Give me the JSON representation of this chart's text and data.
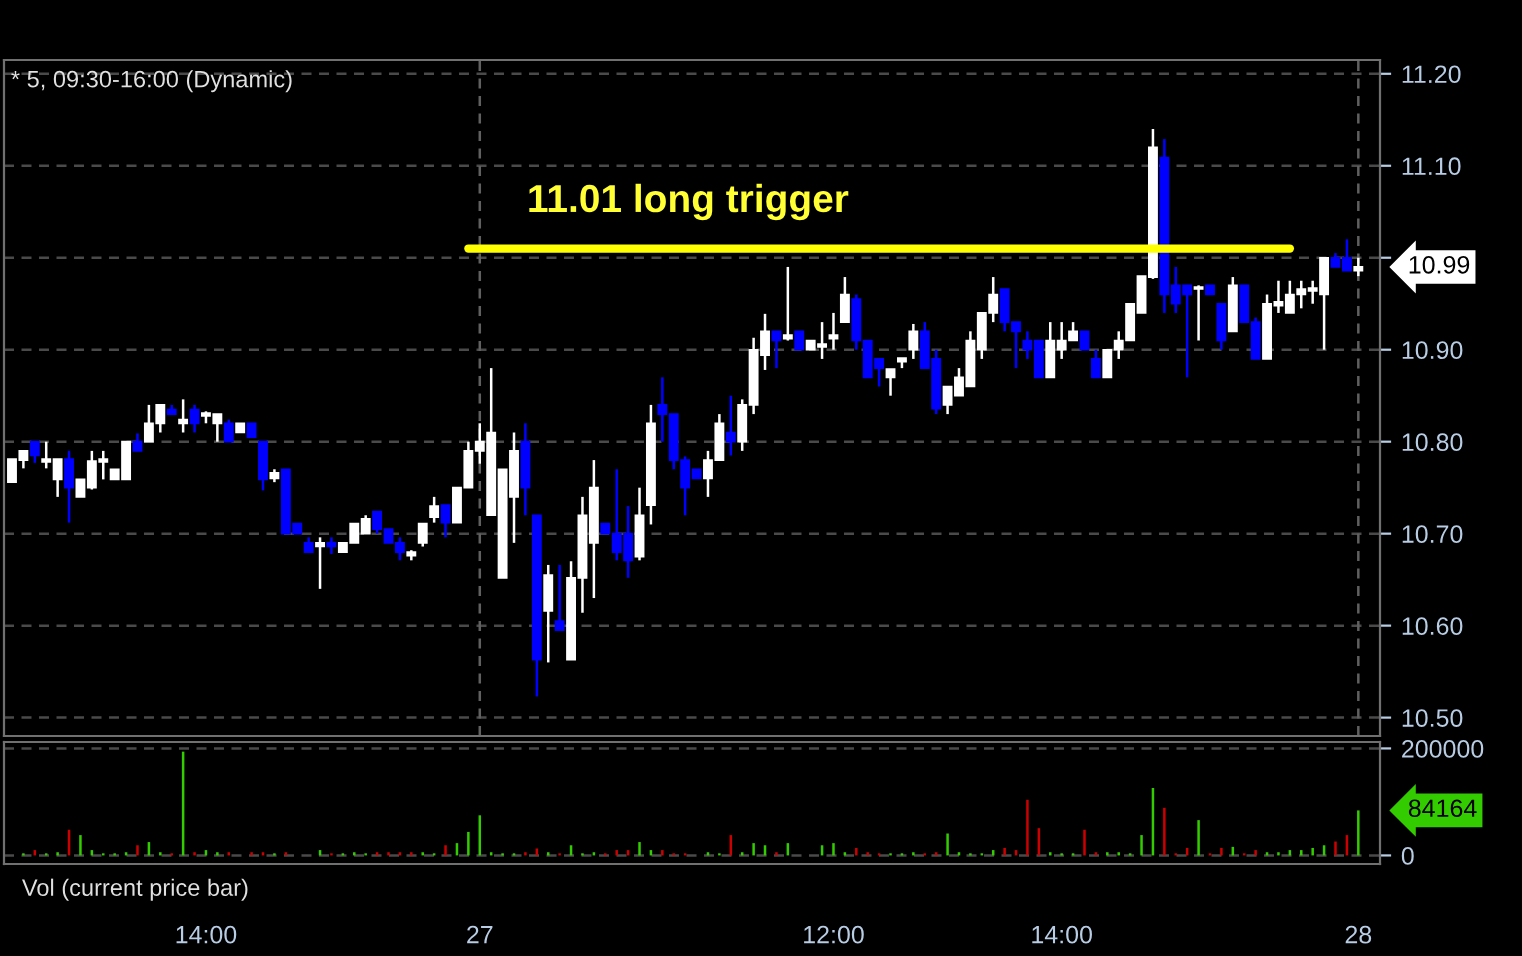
{
  "chart_data": [
    {
      "type": "candlestick",
      "title": "* 5, 09:30-16:00 (Dynamic)",
      "categories": [
        null,
        null,
        null,
        null,
        null,
        null,
        null,
        null,
        null,
        null,
        null,
        null,
        null,
        null,
        null,
        null,
        null,
        null,
        null,
        null,
        null,
        null,
        null,
        null,
        null,
        null,
        null,
        null,
        null,
        null,
        null,
        null,
        null,
        null,
        null,
        null,
        null,
        null,
        null,
        null,
        null,
        null,
        null,
        null,
        null,
        null,
        null,
        null,
        null,
        null,
        null,
        null,
        null,
        null,
        null,
        null,
        null,
        null,
        null,
        null,
        null,
        null,
        null,
        null,
        null,
        null,
        null,
        null,
        null,
        null,
        null,
        null,
        null,
        null,
        null,
        null,
        null,
        null,
        null,
        null,
        null,
        null,
        null,
        null,
        null,
        null,
        null,
        null,
        null,
        null,
        null,
        null,
        null,
        null,
        null,
        null,
        null,
        null,
        null,
        null,
        null,
        null,
        null,
        null,
        null,
        null,
        null,
        null,
        null,
        null,
        null,
        null,
        null,
        null,
        null,
        null,
        null,
        null,
        null
      ],
      "ohlc": [
        [
          10.756,
          10.781,
          10.756,
          10.781
        ],
        [
          10.78,
          10.79,
          10.771,
          10.79
        ],
        [
          10.8,
          10.8,
          10.777,
          10.785
        ],
        [
          10.778,
          10.8,
          10.771,
          10.781
        ],
        [
          10.759,
          10.781,
          10.74,
          10.781
        ],
        [
          10.781,
          10.79,
          10.712,
          10.75
        ],
        [
          10.74,
          10.759,
          10.74,
          10.759
        ],
        [
          10.75,
          10.79,
          10.748,
          10.779
        ],
        [
          10.778,
          10.79,
          10.759,
          10.781
        ],
        [
          10.759,
          10.77,
          10.759,
          10.77
        ],
        [
          10.759,
          10.8,
          10.759,
          10.8
        ],
        [
          10.8,
          10.809,
          10.79,
          10.79
        ],
        [
          10.8,
          10.84,
          10.8,
          10.82
        ],
        [
          10.82,
          10.84,
          10.81,
          10.84
        ],
        [
          10.835,
          10.84,
          10.83,
          10.83
        ],
        [
          10.82,
          10.846,
          10.81,
          10.824
        ],
        [
          10.835,
          10.84,
          10.81,
          10.82
        ],
        [
          10.828,
          10.833,
          10.82,
          10.831
        ],
        [
          10.82,
          10.83,
          10.8,
          10.83
        ],
        [
          10.82,
          10.824,
          10.8,
          10.8
        ],
        [
          10.81,
          10.82,
          10.81,
          10.82
        ],
        [
          10.82,
          10.82,
          10.805,
          10.805
        ],
        [
          10.8,
          10.8,
          10.747,
          10.759
        ],
        [
          10.76,
          10.77,
          10.756,
          10.766
        ],
        [
          10.77,
          10.77,
          10.7,
          10.7
        ],
        [
          10.711,
          10.711,
          10.7,
          10.7
        ],
        [
          10.69,
          10.696,
          10.68,
          10.68
        ],
        [
          10.686,
          10.696,
          10.64,
          10.69
        ],
        [
          10.69,
          10.696,
          10.678,
          10.686
        ],
        [
          10.68,
          10.69,
          10.68,
          10.69
        ],
        [
          10.69,
          10.711,
          10.69,
          10.711
        ],
        [
          10.7,
          10.72,
          10.7,
          10.716
        ],
        [
          10.724,
          10.724,
          10.7,
          10.705
        ],
        [
          10.705,
          10.705,
          10.69,
          10.69
        ],
        [
          10.69,
          10.696,
          10.671,
          10.68
        ],
        [
          10.676,
          10.682,
          10.671,
          10.68
        ],
        [
          10.69,
          10.711,
          10.686,
          10.711
        ],
        [
          10.718,
          10.74,
          10.712,
          10.73
        ],
        [
          10.731,
          10.731,
          10.696,
          10.712
        ],
        [
          10.712,
          10.75,
          10.712,
          10.75
        ],
        [
          10.75,
          10.8,
          10.75,
          10.79
        ],
        [
          10.79,
          10.82,
          10.776,
          10.8
        ],
        [
          10.72,
          10.88,
          10.72,
          10.81
        ],
        [
          10.652,
          10.77,
          10.652,
          10.77
        ],
        [
          10.74,
          10.81,
          10.69,
          10.79
        ],
        [
          10.8,
          10.82,
          10.72,
          10.75
        ],
        [
          10.72,
          10.72,
          10.523,
          10.563
        ],
        [
          10.616,
          10.666,
          10.56,
          10.655
        ],
        [
          10.605,
          10.666,
          10.595,
          10.595
        ],
        [
          10.563,
          10.67,
          10.563,
          10.652
        ],
        [
          10.652,
          10.74,
          10.614,
          10.72
        ],
        [
          10.69,
          10.78,
          10.63,
          10.75
        ],
        [
          10.711,
          10.711,
          10.7,
          10.7
        ],
        [
          10.7,
          10.77,
          10.671,
          10.68
        ],
        [
          10.7,
          10.73,
          10.652,
          10.671
        ],
        [
          10.675,
          10.75,
          10.671,
          10.72
        ],
        [
          10.731,
          10.84,
          10.71,
          10.82
        ],
        [
          10.84,
          10.87,
          10.8,
          10.83
        ],
        [
          10.83,
          10.83,
          10.77,
          10.78
        ],
        [
          10.78,
          10.784,
          10.72,
          10.75
        ],
        [
          10.77,
          10.77,
          10.76,
          10.76
        ],
        [
          10.76,
          10.79,
          10.74,
          10.78
        ],
        [
          10.78,
          10.83,
          10.78,
          10.82
        ],
        [
          10.81,
          10.85,
          10.785,
          10.8
        ],
        [
          10.8,
          10.846,
          10.79,
          10.84
        ],
        [
          10.84,
          10.913,
          10.83,
          10.9
        ],
        [
          10.894,
          10.939,
          10.878,
          10.92
        ],
        [
          10.92,
          10.92,
          10.88,
          10.91
        ],
        [
          10.912,
          10.99,
          10.91,
          10.916
        ],
        [
          10.92,
          10.92,
          10.9,
          10.9
        ],
        [
          10.9,
          10.91,
          10.9,
          10.91
        ],
        [
          10.903,
          10.93,
          10.89,
          10.906
        ],
        [
          10.912,
          10.94,
          10.9,
          10.916
        ],
        [
          10.93,
          10.979,
          10.93,
          10.96
        ],
        [
          10.955,
          10.96,
          10.9,
          10.91
        ],
        [
          10.91,
          10.91,
          10.87,
          10.87
        ],
        [
          10.89,
          10.89,
          10.86,
          10.88
        ],
        [
          10.87,
          10.879,
          10.85,
          10.879
        ],
        [
          10.887,
          10.891,
          10.88,
          10.891
        ],
        [
          10.9,
          10.928,
          10.89,
          10.92
        ],
        [
          10.92,
          10.93,
          10.88,
          10.88
        ],
        [
          10.89,
          10.9,
          10.83,
          10.836
        ],
        [
          10.84,
          10.86,
          10.83,
          10.86
        ],
        [
          10.85,
          10.88,
          10.85,
          10.87
        ],
        [
          10.86,
          10.92,
          10.86,
          10.91
        ],
        [
          10.9,
          10.94,
          10.89,
          10.94
        ],
        [
          10.94,
          10.979,
          10.93,
          10.96
        ],
        [
          10.966,
          10.966,
          10.92,
          10.93
        ],
        [
          10.93,
          10.93,
          10.88,
          10.92
        ],
        [
          10.91,
          10.92,
          10.89,
          10.9
        ],
        [
          10.91,
          10.91,
          10.87,
          10.87
        ],
        [
          10.87,
          10.93,
          10.87,
          10.91
        ],
        [
          10.9,
          10.93,
          10.89,
          10.91
        ],
        [
          10.91,
          10.93,
          10.91,
          10.92
        ],
        [
          10.92,
          10.92,
          10.9,
          10.9
        ],
        [
          10.89,
          10.9,
          10.87,
          10.87
        ],
        [
          10.87,
          10.9,
          10.87,
          10.9
        ],
        [
          10.9,
          10.92,
          10.89,
          10.91
        ],
        [
          10.91,
          10.95,
          10.91,
          10.95
        ],
        [
          10.94,
          10.98,
          10.94,
          10.98
        ],
        [
          10.979,
          11.14,
          10.977,
          11.12
        ],
        [
          11.109,
          11.129,
          10.94,
          10.96
        ],
        [
          10.97,
          10.99,
          10.94,
          10.95
        ],
        [
          10.97,
          10.97,
          10.87,
          10.96
        ],
        [
          10.966,
          10.97,
          10.91,
          10.968
        ],
        [
          10.97,
          10.97,
          10.96,
          10.96
        ],
        [
          10.95,
          10.95,
          10.9,
          10.91
        ],
        [
          10.92,
          10.979,
          10.92,
          10.97
        ],
        [
          10.97,
          10.97,
          10.93,
          10.93
        ],
        [
          10.93,
          10.935,
          10.89,
          10.89
        ],
        [
          10.89,
          10.96,
          10.89,
          10.95
        ],
        [
          10.948,
          10.975,
          10.94,
          10.952
        ],
        [
          10.94,
          10.975,
          10.94,
          10.96
        ],
        [
          10.96,
          10.975,
          10.945,
          10.966
        ],
        [
          10.964,
          10.975,
          10.95,
          10.967
        ],
        [
          10.96,
          11.0,
          10.9,
          11.0
        ],
        [
          11.0,
          11.005,
          10.99,
          10.99
        ],
        [
          11.0,
          11.02,
          10.986,
          10.986
        ],
        [
          10.986,
          11.0,
          10.98,
          10.99
        ]
      ],
      "colors": [
        "#ffffff",
        "#ffffff",
        "#0000ff",
        "#ffffff",
        "#ffffff",
        "#0000ff",
        "#ffffff",
        "#ffffff",
        "#ffffff",
        "#ffffff",
        "#ffffff",
        "#0000ff",
        "#ffffff",
        "#ffffff",
        "#0000ff",
        "#ffffff",
        "#0000ff",
        "#ffffff",
        "#ffffff",
        "#0000ff",
        "#ffffff",
        "#0000ff",
        "#0000ff",
        "#ffffff",
        "#0000ff",
        "#0000ff",
        "#0000ff",
        "#ffffff",
        "#0000ff",
        "#ffffff",
        "#ffffff",
        "#ffffff",
        "#0000ff",
        "#0000ff",
        "#0000ff",
        "#ffffff",
        "#ffffff",
        "#ffffff",
        "#0000ff",
        "#ffffff",
        "#ffffff",
        "#ffffff",
        "#ffffff",
        "#ffffff",
        "#ffffff",
        "#0000ff",
        "#0000ff",
        "#ffffff",
        "#0000ff",
        "#ffffff",
        "#ffffff",
        "#ffffff",
        "#0000ff",
        "#0000ff",
        "#0000ff",
        "#ffffff",
        "#ffffff",
        "#0000ff",
        "#0000ff",
        "#0000ff",
        "#0000ff",
        "#ffffff",
        "#ffffff",
        "#0000ff",
        "#ffffff",
        "#ffffff",
        "#ffffff",
        "#0000ff",
        "#ffffff",
        "#0000ff",
        "#ffffff",
        "#ffffff",
        "#ffffff",
        "#ffffff",
        "#0000ff",
        "#0000ff",
        "#0000ff",
        "#ffffff",
        "#ffffff",
        "#ffffff",
        "#0000ff",
        "#0000ff",
        "#ffffff",
        "#ffffff",
        "#ffffff",
        "#ffffff",
        "#ffffff",
        "#0000ff",
        "#0000ff",
        "#0000ff",
        "#0000ff",
        "#ffffff",
        "#ffffff",
        "#ffffff",
        "#0000ff",
        "#0000ff",
        "#ffffff",
        "#ffffff",
        "#ffffff",
        "#ffffff",
        "#ffffff",
        "#0000ff",
        "#0000ff",
        "#0000ff",
        "#ffffff",
        "#0000ff",
        "#0000ff",
        "#ffffff",
        "#0000ff",
        "#0000ff",
        "#ffffff",
        "#ffffff",
        "#ffffff",
        "#ffffff",
        "#ffffff",
        "#ffffff",
        "#0000ff",
        "#0000ff",
        "#ffffff"
      ],
      "series": [
        {
          "type": "line",
          "color": "#ffff00",
          "values": [
            null,
            null,
            null,
            null,
            null,
            null,
            null,
            null,
            null,
            null,
            null,
            null,
            null,
            null,
            null,
            null,
            null,
            null,
            null,
            null,
            null,
            null,
            null,
            null,
            null,
            null,
            null,
            null,
            null,
            null,
            null,
            null,
            null,
            null,
            null,
            null,
            null,
            null,
            null,
            null,
            11.01,
            11.01,
            11.01,
            11.01,
            11.01,
            11.01,
            11.01,
            11.01,
            11.01,
            11.01,
            11.01,
            11.01,
            11.01,
            11.01,
            11.01,
            11.01,
            11.01,
            11.01,
            11.01,
            11.01,
            11.01,
            11.01,
            11.01,
            11.01,
            11.01,
            11.01,
            11.01,
            11.01,
            11.01,
            11.01,
            11.01,
            11.01,
            11.01,
            11.01,
            11.01,
            11.01,
            11.01,
            11.01,
            11.01,
            11.01,
            11.01,
            11.01,
            11.01,
            11.01,
            11.01,
            11.01,
            11.01,
            11.01,
            11.01,
            11.01,
            11.01,
            11.01,
            11.01,
            11.01,
            11.01,
            11.01,
            11.01,
            11.01,
            11.01,
            11.01,
            11.01,
            11.01,
            11.01,
            11.01,
            11.01,
            11.01,
            11.01,
            11.01,
            11.01,
            11.01,
            11.01,
            11.01,
            11.01,
            null,
            null,
            null,
            null,
            null,
            null
          ]
        }
      ],
      "ylim": [
        10.48,
        11.215
      ],
      "yticks": [
        {
          "value": 10.5,
          "label": "10.50"
        },
        {
          "value": 10.6,
          "label": "10.60"
        },
        {
          "value": 10.7,
          "label": "10.70"
        },
        {
          "value": 10.8,
          "label": "10.80"
        },
        {
          "value": 10.9,
          "label": "10.90"
        },
        {
          "value": 11.0,
          "label": null
        },
        {
          "value": 11.1,
          "label": "11.10"
        },
        {
          "value": 11.2,
          "label": "11.20"
        }
      ],
      "tick_labels": "y",
      "grid": "y",
      "ref_lines": [
        {
          "axis": "x",
          "value": "27"
        },
        {
          "axis": "x",
          "value": "28"
        }
      ],
      "annotations": [
        "11.01 long trigger",
        "10.99"
      ]
    },
    {
      "type": "bar",
      "title": "Vol (current price bar)",
      "categories": [
        null,
        null,
        null,
        null,
        null,
        null,
        null,
        null,
        null,
        null,
        null,
        null,
        null,
        null,
        null,
        null,
        null,
        "14:00",
        null,
        null,
        null,
        null,
        null,
        null,
        null,
        null,
        null,
        null,
        null,
        null,
        null,
        null,
        null,
        null,
        null,
        null,
        null,
        null,
        null,
        null,
        null,
        "27",
        null,
        null,
        null,
        null,
        null,
        null,
        null,
        null,
        null,
        null,
        null,
        null,
        null,
        null,
        null,
        null,
        null,
        null,
        null,
        null,
        null,
        null,
        null,
        null,
        null,
        null,
        null,
        null,
        null,
        null,
        "12:00",
        null,
        null,
        null,
        null,
        null,
        null,
        null,
        null,
        null,
        null,
        null,
        null,
        null,
        null,
        null,
        null,
        null,
        null,
        null,
        "14:00",
        null,
        null,
        null,
        null,
        null,
        null,
        null,
        null,
        null,
        null,
        null,
        null,
        null,
        null,
        null,
        null,
        null,
        null,
        null,
        null,
        null,
        null,
        null,
        null,
        null,
        "28"
      ],
      "values": [
        null,
        4000,
        10000,
        4000,
        6000,
        48000,
        38000,
        10000,
        4000,
        4000,
        6000,
        19000,
        25000,
        6000,
        4000,
        194000,
        6000,
        10000,
        6000,
        6000,
        null,
        6000,
        6000,
        4000,
        6000,
        null,
        null,
        10000,
        4000,
        4000,
        6000,
        4000,
        6000,
        6000,
        6000,
        6000,
        6000,
        4000,
        19000,
        23000,
        44000,
        75000,
        6000,
        4000,
        4000,
        6000,
        13000,
        6000,
        4000,
        19000,
        4000,
        6000,
        4000,
        10000,
        10000,
        25000,
        10000,
        10000,
        4000,
        4000,
        null,
        6000,
        4000,
        38000,
        6000,
        23000,
        19000,
        6000,
        23000,
        null,
        null,
        19000,
        23000,
        6000,
        14000,
        6000,
        4000,
        4000,
        4000,
        6000,
        4000,
        6000,
        41000,
        6000,
        4000,
        4000,
        10000,
        14000,
        10000,
        104000,
        51000,
        6000,
        4000,
        4000,
        48000,
        6000,
        6000,
        6000,
        4000,
        38000,
        126000,
        89000,
        4000,
        14000,
        66000,
        4000,
        14000,
        16000,
        4000,
        10000,
        6000,
        6000,
        10000,
        10000,
        14000,
        19000,
        26000,
        38000,
        84164
      ],
      "colors": [
        "#33cc00",
        "#33cc00",
        "#cc0000",
        "#33cc00",
        "#33cc00",
        "#cc0000",
        "#33cc00",
        "#33cc00",
        "#33cc00",
        "#33cc00",
        "#33cc00",
        "#cc0000",
        "#33cc00",
        "#33cc00",
        "#cc0000",
        "#33cc00",
        "#cc0000",
        "#33cc00",
        "#33cc00",
        "#cc0000",
        "#33cc00",
        "#cc0000",
        "#cc0000",
        "#33cc00",
        "#cc0000",
        "#33cc00",
        "#33cc00",
        "#33cc00",
        "#cc0000",
        "#33cc00",
        "#33cc00",
        "#33cc00",
        "#cc0000",
        "#cc0000",
        "#cc0000",
        "#cc0000",
        "#33cc00",
        "#33cc00",
        "#cc0000",
        "#33cc00",
        "#33cc00",
        "#33cc00",
        "#33cc00",
        "#33cc00",
        "#33cc00",
        "#cc0000",
        "#cc0000",
        "#33cc00",
        "#cc0000",
        "#33cc00",
        "#33cc00",
        "#33cc00",
        "#cc0000",
        "#cc0000",
        "#cc0000",
        "#33cc00",
        "#33cc00",
        "#cc0000",
        "#cc0000",
        "#cc0000",
        "#33cc00",
        "#33cc00",
        "#33cc00",
        "#cc0000",
        "#33cc00",
        "#33cc00",
        "#33cc00",
        "#cc0000",
        "#33cc00",
        "#33cc00",
        "#33cc00",
        "#33cc00",
        "#33cc00",
        "#33cc00",
        "#cc0000",
        "#cc0000",
        "#cc0000",
        "#33cc00",
        "#33cc00",
        "#33cc00",
        "#cc0000",
        "#cc0000",
        "#33cc00",
        "#33cc00",
        "#33cc00",
        "#33cc00",
        "#33cc00",
        "#cc0000",
        "#cc0000",
        "#cc0000",
        "#cc0000",
        "#33cc00",
        "#33cc00",
        "#33cc00",
        "#cc0000",
        "#cc0000",
        "#33cc00",
        "#33cc00",
        "#33cc00",
        "#33cc00",
        "#33cc00",
        "#cc0000",
        "#cc0000",
        "#cc0000",
        "#33cc00",
        "#cc0000",
        "#cc0000",
        "#33cc00",
        "#cc0000",
        "#cc0000",
        "#33cc00",
        "#33cc00",
        "#33cc00",
        "#33cc00",
        "#33cc00",
        "#33cc00",
        "#cc0000",
        "#cc0000",
        "#33cc00"
      ],
      "ylim": [
        -16000,
        212000
      ],
      "yticks": [
        0,
        200000
      ],
      "grid": "y",
      "annotations": [
        "84164"
      ]
    }
  ]
}
